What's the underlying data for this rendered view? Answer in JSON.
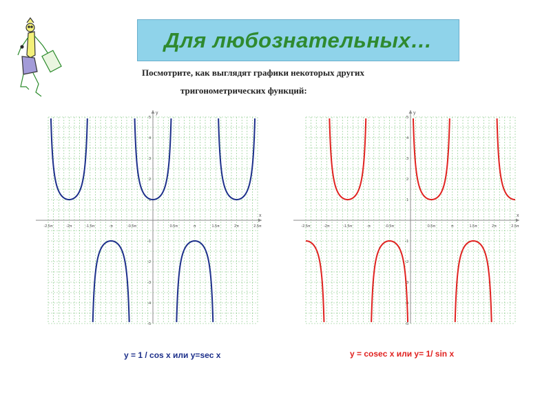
{
  "title": "Для любознательных…",
  "subtitle_line1": "Посмотрите, как выглядят графики  некоторых других",
  "subtitle_line2": "тригонометрических функций:",
  "captions": {
    "left": "у = 1 / cos x или у=sec x",
    "right": "у = cosec x или у= 1/ sin x"
  },
  "colors": {
    "title_bg": "#8fd3ea",
    "title_text": "#2f8a2f",
    "sec_curve": "#1c2f8a",
    "csc_curve": "#e0211f",
    "grid": "#7bc47b",
    "axes": "#8a8a8a"
  },
  "chart_data": [
    {
      "type": "line",
      "function": "sec",
      "xlabel": "x",
      "ylabel": "y",
      "x_unit": "π",
      "xlim": [
        -2.5,
        2.5
      ],
      "ylim": [
        -5,
        5
      ],
      "x_ticks": [
        "-2.5π",
        "-2π",
        "-1.5π",
        "-π",
        "-0.5π",
        "0.5π",
        "π",
        "1.5π",
        "2π",
        "2.5π"
      ],
      "x_tick_values": [
        -2.5,
        -2,
        -1.5,
        -1,
        -0.5,
        0.5,
        1,
        1.5,
        2,
        2.5
      ],
      "y_ticks": [
        "5",
        "4",
        "3",
        "2",
        "1",
        "-1",
        "-2",
        "-3",
        "-4",
        "-5"
      ],
      "y_tick_values": [
        5,
        4,
        3,
        2,
        1,
        -1,
        -2,
        -3,
        -4,
        -5
      ],
      "grid": true,
      "series": [
        {
          "values": "y = 1 / cos x",
          "color": "#1c2f8a"
        }
      ]
    },
    {
      "type": "line",
      "function": "csc",
      "xlabel": "x",
      "ylabel": "y",
      "x_unit": "π",
      "xlim": [
        -2.5,
        2.5
      ],
      "ylim": [
        -5,
        5
      ],
      "x_ticks": [
        "-2.5π",
        "-2π",
        "-1.5π",
        "-π",
        "-0.5π",
        "0.5π",
        "π",
        "1.5π",
        "2π",
        "2.5π"
      ],
      "x_tick_values": [
        -2.5,
        -2,
        -1.5,
        -1,
        -0.5,
        0.5,
        1,
        1.5,
        2,
        2.5
      ],
      "y_ticks": [
        "5",
        "4",
        "3",
        "2",
        "1",
        "-1",
        "-2",
        "-3",
        "-4",
        "-5"
      ],
      "y_tick_values": [
        5,
        4,
        3,
        2,
        1,
        -1,
        -2,
        -3,
        -4,
        -5
      ],
      "grid": true,
      "series": [
        {
          "values": "y = 1 / sin x",
          "color": "#e0211f"
        }
      ]
    }
  ]
}
